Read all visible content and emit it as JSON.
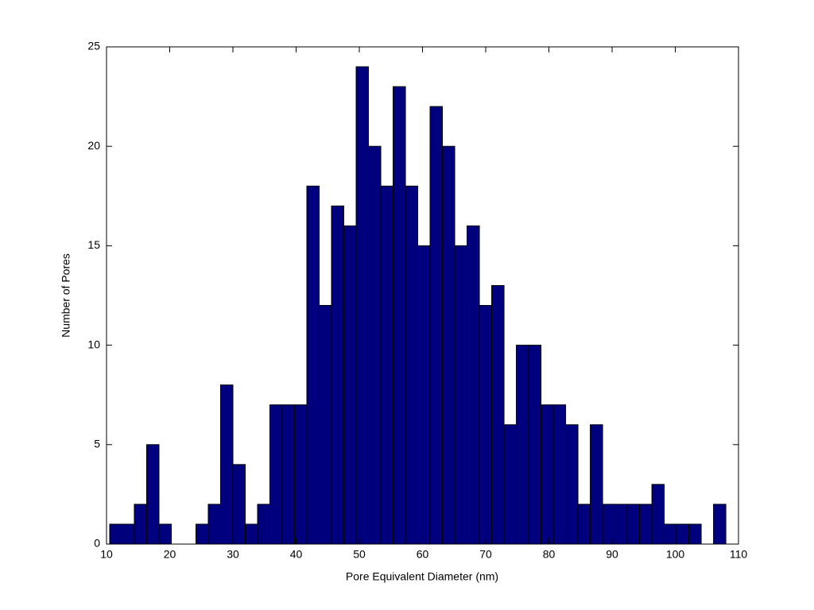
{
  "chart_data": {
    "type": "histogram",
    "xlabel": "Pore Equivalent Diameter (nm)",
    "ylabel": "Number of Pores",
    "color": "#00007f",
    "bins": [
      10.5,
      12.45,
      14.4,
      16.35,
      18.3,
      20.25,
      22.2,
      24.15,
      26.1,
      28.05,
      30,
      31.95,
      33.9,
      35.85,
      37.8,
      39.75,
      41.7,
      43.65,
      45.6,
      47.55,
      49.5,
      51.45,
      53.4,
      55.35,
      57.3,
      59.25,
      61.2,
      63.15,
      65.1,
      67.05,
      69,
      70.95,
      72.9,
      74.85,
      76.8,
      78.75,
      80.7,
      82.65,
      84.6,
      86.55,
      88.5,
      90.45,
      92.4,
      94.35,
      96.3,
      98.25,
      100.2,
      102.15,
      104.1,
      106.05,
      108
    ],
    "values": [
      1,
      1,
      2,
      5,
      1,
      0,
      0,
      1,
      2,
      8,
      4,
      1,
      2,
      7,
      7,
      7,
      18,
      12,
      17,
      16,
      24,
      20,
      18,
      23,
      18,
      15,
      22,
      20,
      15,
      16,
      12,
      13,
      6,
      10,
      10,
      7,
      7,
      6,
      2,
      6,
      2,
      2,
      2,
      2,
      3,
      1,
      1,
      1,
      0,
      2
    ],
    "xlim": [
      10,
      110
    ],
    "xticks": [
      10,
      20,
      30,
      40,
      50,
      60,
      70,
      80,
      90,
      100,
      110
    ],
    "ylim": [
      0,
      25
    ],
    "yticks": [
      0,
      5,
      10,
      15,
      20,
      25
    ]
  }
}
